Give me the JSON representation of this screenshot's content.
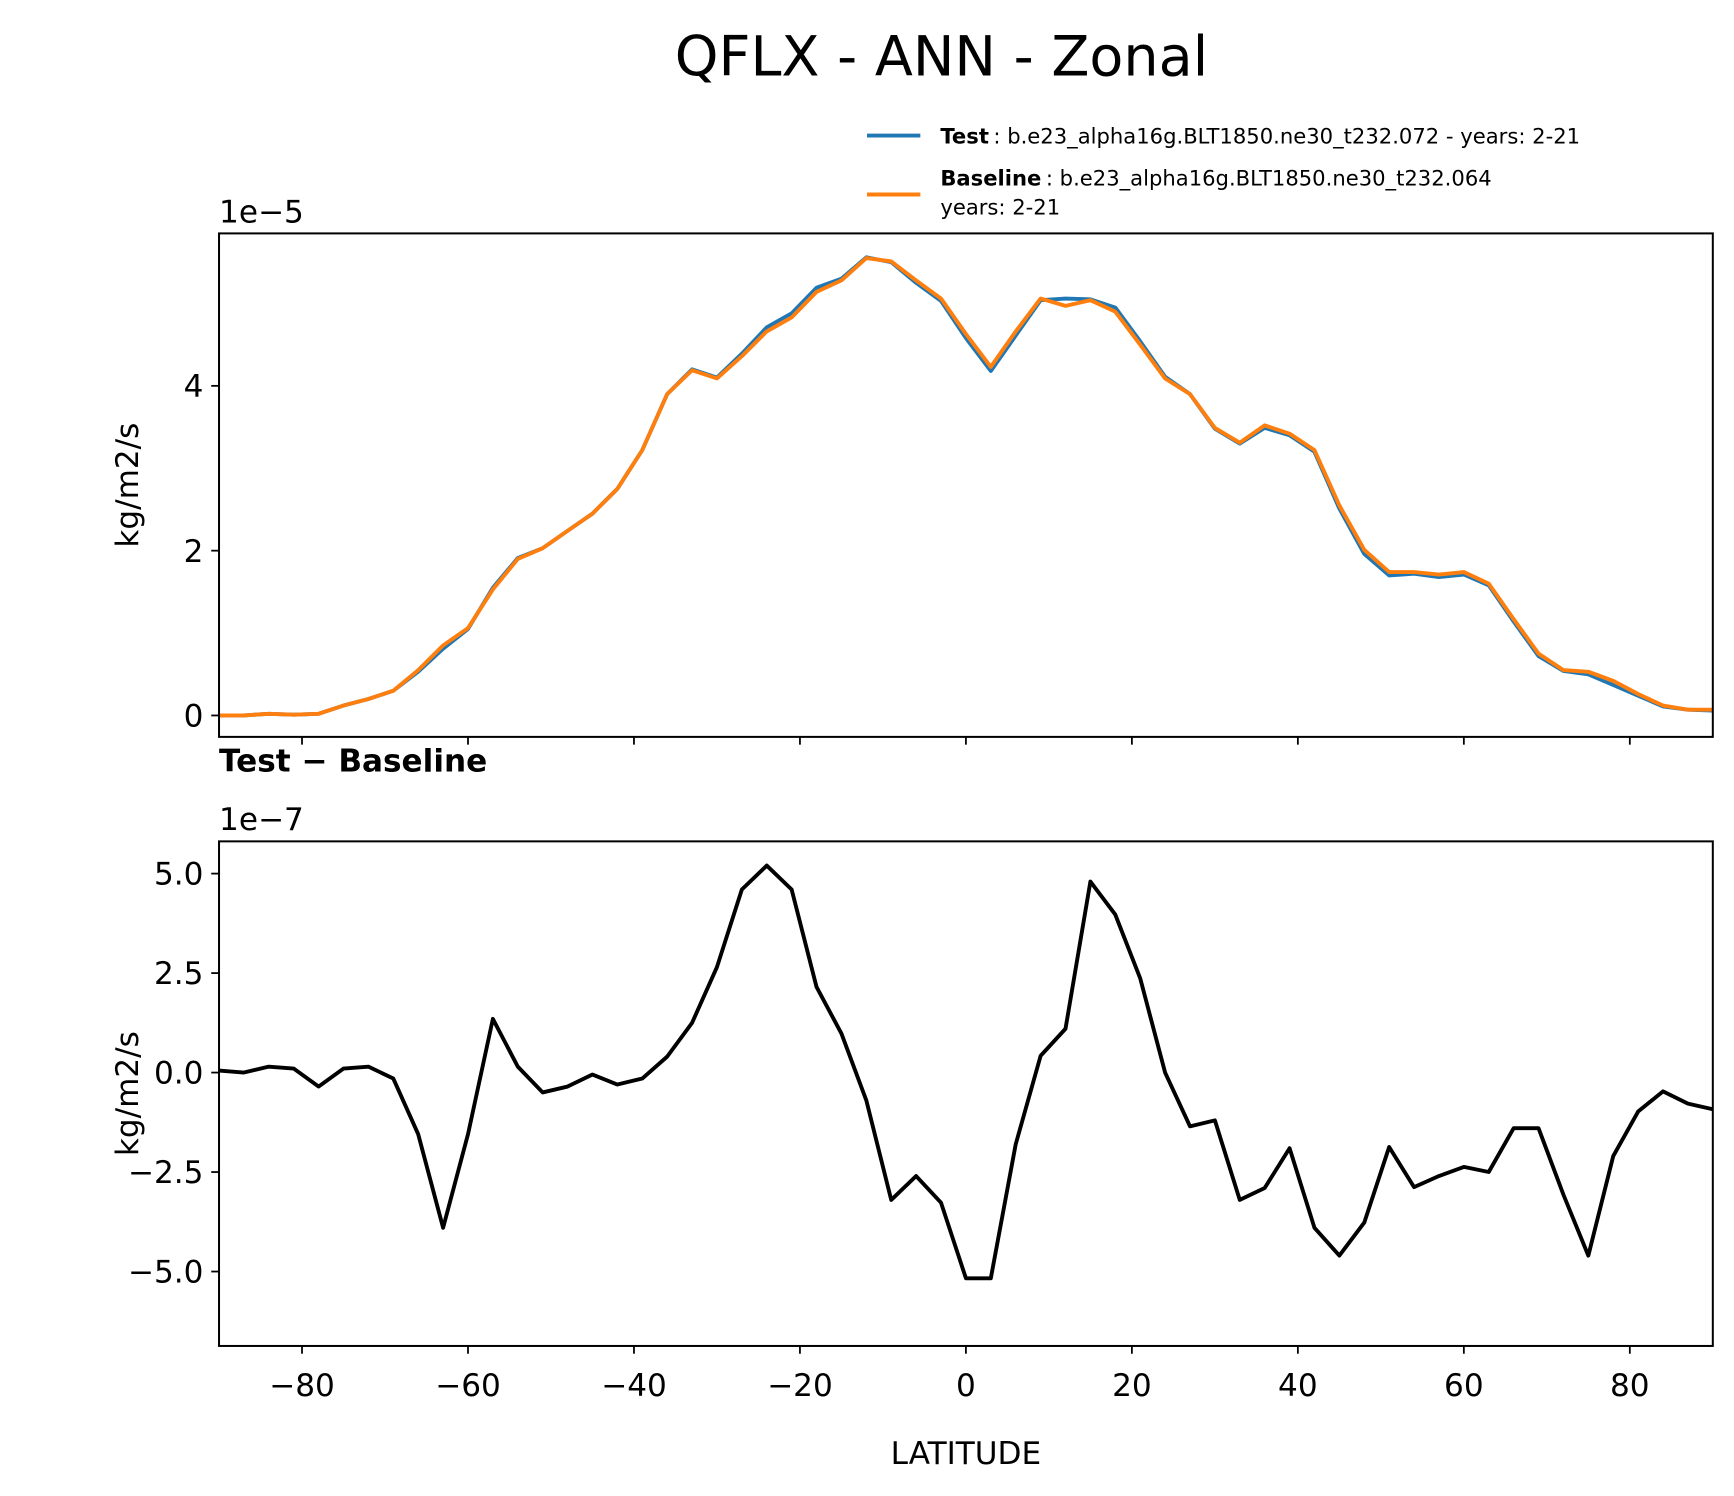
{
  "title": "QFLX - ANN - Zonal",
  "chart_data": [
    {
      "type": "line",
      "offset_label": "1e−5",
      "ylabel": "kg/m2/s",
      "x": [
        -90,
        -87,
        -84,
        -81,
        -78,
        -75,
        -72,
        -69,
        -66,
        -63,
        -60,
        -57,
        -54,
        -51,
        -48,
        -45,
        -42,
        -39,
        -36,
        -33,
        -30,
        -27,
        -24,
        -21,
        -18,
        -15,
        -12,
        -9,
        -6,
        -3,
        0,
        3,
        6,
        9,
        12,
        15,
        18,
        21,
        24,
        27,
        30,
        33,
        36,
        39,
        42,
        45,
        48,
        51,
        54,
        57,
        60,
        63,
        66,
        69,
        72,
        75,
        78,
        81,
        84,
        87,
        90
      ],
      "xlim": [
        -90,
        90
      ],
      "ylim": [
        -0.26,
        5.85
      ],
      "yticks": [
        0,
        2,
        4
      ],
      "series": [
        {
          "name": "Test",
          "label": ": b.e23_alpha16g.BLT1850.ne30_t232.072 - years: 2-21",
          "color": "#1f77b4",
          "values": [
            0,
            0,
            0.02,
            0.01,
            0.02,
            0.12,
            0.2,
            0.3,
            0.53,
            0.81,
            1.05,
            1.55,
            1.91,
            2.03,
            2.24,
            2.45,
            2.75,
            3.22,
            3.9,
            4.2,
            4.1,
            4.39,
            4.71,
            4.88,
            5.19,
            5.3,
            5.56,
            5.5,
            5.25,
            5.03,
            4.58,
            4.18,
            4.61,
            5.04,
            5.06,
            5.05,
            4.95,
            4.54,
            4.11,
            3.9,
            3.48,
            3.3,
            3.49,
            3.4,
            3.2,
            2.51,
            1.96,
            1.7,
            1.72,
            1.68,
            1.71,
            1.58,
            1.14,
            0.72,
            0.54,
            0.5,
            0.37,
            0.24,
            0.11,
            0.07,
            0.06
          ]
        },
        {
          "name": "Baseline",
          "label_lines": [
            ": b.e23_alpha16g.BLT1850.ne30_t232.064",
            "years: 2-21"
          ],
          "color": "#ff7f0e",
          "values": [
            0,
            0,
            0.02,
            0.01,
            0.02,
            0.12,
            0.2,
            0.3,
            0.55,
            0.85,
            1.06,
            1.53,
            1.9,
            2.03,
            2.24,
            2.45,
            2.75,
            3.22,
            3.9,
            4.19,
            4.09,
            4.36,
            4.66,
            4.83,
            5.14,
            5.28,
            5.55,
            5.51,
            5.28,
            5.06,
            4.63,
            4.23,
            4.66,
            5.06,
            4.97,
            5.04,
            4.9,
            4.5,
            4.09,
            3.9,
            3.49,
            3.31,
            3.52,
            3.42,
            3.22,
            2.55,
            2.01,
            1.74,
            1.74,
            1.71,
            1.74,
            1.6,
            1.17,
            0.75,
            0.55,
            0.53,
            0.42,
            0.26,
            0.12,
            0.07,
            0.07
          ]
        }
      ]
    },
    {
      "type": "line",
      "title": "Test − Baseline",
      "offset_label": "1e−7",
      "ylabel": "kg/m2/s",
      "xlabel": "LATITUDE",
      "x": [
        -90,
        -87,
        -84,
        -81,
        -78,
        -75,
        -72,
        -69,
        -66,
        -63,
        -60,
        -57,
        -54,
        -51,
        -48,
        -45,
        -42,
        -39,
        -36,
        -33,
        -30,
        -27,
        -24,
        -21,
        -18,
        -15,
        -12,
        -9,
        -6,
        -3,
        0,
        3,
        6,
        9,
        12,
        15,
        18,
        21,
        24,
        27,
        30,
        33,
        36,
        39,
        42,
        45,
        48,
        51,
        54,
        57,
        60,
        63,
        66,
        69,
        72,
        75,
        78,
        81,
        84,
        87,
        90
      ],
      "xlim": [
        -90,
        90
      ],
      "ylim": [
        -6.87,
        5.81
      ],
      "xticks": [
        {
          "value": -80,
          "label": "−80"
        },
        {
          "value": -60,
          "label": "−60"
        },
        {
          "value": -40,
          "label": "−40"
        },
        {
          "value": -20,
          "label": "−20"
        },
        0,
        20,
        40,
        60,
        80
      ],
      "yticks": [
        {
          "value": 5,
          "label": "5.0"
        },
        {
          "value": 2.5,
          "label": "2.5"
        },
        {
          "value": 0,
          "label": "0.0"
        },
        {
          "value": -2.5,
          "label": "−2.5"
        },
        {
          "value": -5,
          "label": "−5.0"
        }
      ],
      "series": [
        {
          "color": "#000000",
          "values": [
            0.05,
            0.0,
            0.15,
            0.1,
            -0.35,
            0.1,
            0.15,
            -0.15,
            -1.55,
            -3.9,
            -1.55,
            1.35,
            0.15,
            -0.5,
            -0.35,
            -0.05,
            -0.3,
            -0.15,
            0.4,
            1.25,
            2.65,
            4.6,
            5.2,
            4.6,
            2.15,
            0.98,
            -0.7,
            -3.2,
            -2.6,
            -3.27,
            -5.17,
            -5.17,
            -1.8,
            0.42,
            1.1,
            4.8,
            3.97,
            2.37,
            0,
            -1.35,
            -1.2,
            -3.2,
            -2.9,
            -1.9,
            -3.9,
            -4.6,
            -3.77,
            -1.87,
            -2.88,
            -2.6,
            -2.37,
            -2.5,
            -1.4,
            -1.4,
            -3.07,
            -4.6,
            -2.1,
            -0.98,
            -0.47,
            -0.78,
            -0.92
          ]
        }
      ]
    }
  ]
}
